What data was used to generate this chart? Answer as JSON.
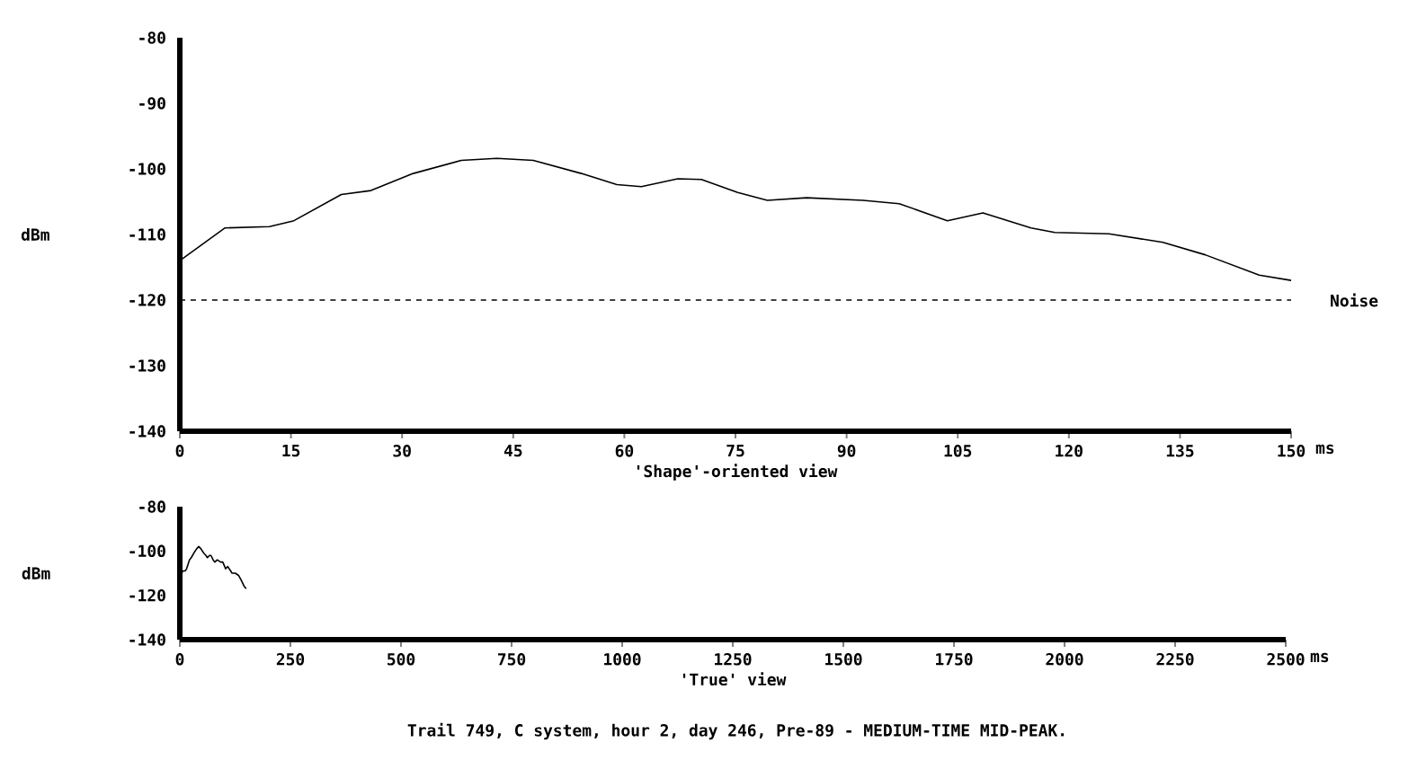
{
  "chart_data": [
    {
      "type": "line",
      "xlabel": "'Shape'-oriented view",
      "ylabel": "dBm",
      "annotations": [
        "ms"
      ],
      "x": [
        0,
        6.1,
        12.1,
        15.4,
        21.8,
        25.8,
        31.5,
        38,
        42.8,
        47.7,
        54.2,
        59,
        62.3,
        67.2,
        70.4,
        75.3,
        79.3,
        84.6,
        92.2,
        97.1,
        103.6,
        108.4,
        114.9,
        118.1,
        125.4,
        132.7,
        138.4,
        145.7,
        150
      ],
      "series": [
        {
          "color": "#000000",
          "values": [
            -114.0,
            -109.0,
            -108.8,
            -107.9,
            -103.9,
            -103.3,
            -100.7,
            -98.7,
            -98.4,
            -98.7,
            -100.7,
            -102.4,
            -102.7,
            -101.5,
            -101.6,
            -103.6,
            -104.8,
            -104.4,
            -104.8,
            -105.3,
            -107.9,
            -106.7,
            -109.0,
            -109.7,
            -109.9,
            -111.2,
            -113.1,
            -116.2,
            -117.0
          ]
        }
      ],
      "xlim": [
        0,
        150
      ],
      "xticks": [
        0,
        15,
        30,
        45,
        60,
        75,
        90,
        105,
        120,
        135,
        150
      ],
      "ylim": [
        -140,
        -80
      ],
      "yticks": [
        -140,
        -130,
        -120,
        -110,
        -100,
        -90,
        -80
      ],
      "ref_lines": [
        {
          "axis": "y",
          "value": -120,
          "label": "Noise",
          "line_style": "dashed",
          "color": "#000000"
        }
      ]
    },
    {
      "type": "line",
      "xlabel": "'True' view",
      "ylabel": "dBm",
      "annotations": [
        "ms",
        "Trail 749, C system, hour 2, day 246, Pre-89 -  MEDIUM-TIME MID-PEAK."
      ],
      "x": [
        0,
        6.1,
        12.1,
        15.4,
        21.8,
        25.8,
        31.5,
        38,
        42.8,
        47.7,
        54.2,
        59,
        62.3,
        67.2,
        70.4,
        75.3,
        79.3,
        84.6,
        92.2,
        97.1,
        103.6,
        108.4,
        114.9,
        118.1,
        125.4,
        132.7,
        138.4,
        145.7,
        150
      ],
      "series": [
        {
          "color": "#000000",
          "values": [
            -114,
            -109,
            -109,
            -108,
            -104,
            -103,
            -101,
            -99,
            -98,
            -99,
            -101,
            -102,
            -103,
            -102,
            -102,
            -104,
            -105,
            -104,
            -105,
            -105,
            -108,
            -107,
            -109,
            -110,
            -110,
            -111,
            -113,
            -116,
            -117
          ]
        }
      ],
      "xlim": [
        0,
        2500
      ],
      "xticks": [
        0,
        250,
        500,
        750,
        1000,
        1250,
        1500,
        1750,
        2000,
        2250,
        2500
      ],
      "ylim": [
        -140,
        -80
      ],
      "yticks": [
        -140,
        -120,
        -100,
        -80
      ]
    }
  ]
}
